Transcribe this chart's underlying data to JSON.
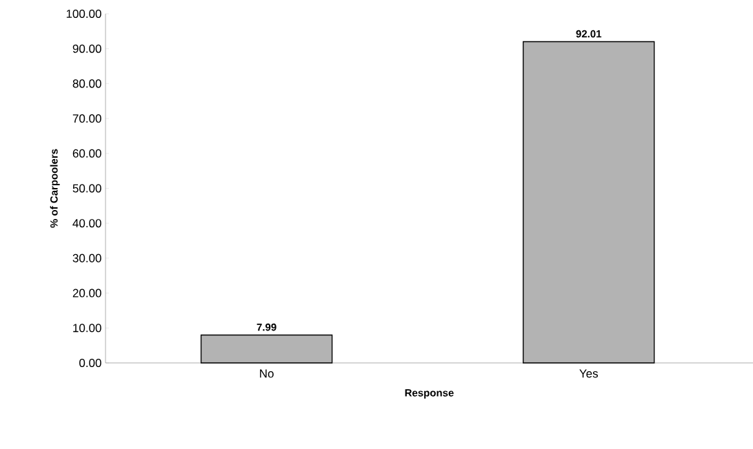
{
  "chart_data": {
    "type": "bar",
    "xlabel": "Response",
    "ylabel": "% of Carpoolers",
    "categories": [
      "No",
      "Yes"
    ],
    "values": [
      7.99,
      92.01
    ],
    "color": "#b3b3b3",
    "data_labels": true,
    "ylim": [
      0,
      100
    ],
    "yticks": [
      {
        "value": 0,
        "label": "0.00"
      },
      {
        "value": 10,
        "label": "10.00"
      },
      {
        "value": 20,
        "label": "20.00"
      },
      {
        "value": 30,
        "label": "30.00"
      },
      {
        "value": 40,
        "label": "40.00"
      },
      {
        "value": 50,
        "label": "50.00"
      },
      {
        "value": 60,
        "label": "60.00"
      },
      {
        "value": 70,
        "label": "70.00"
      },
      {
        "value": 80,
        "label": "80.00"
      },
      {
        "value": 90,
        "label": "90.00"
      },
      {
        "value": 100,
        "label": "100.00"
      }
    ],
    "marker": "none"
  }
}
